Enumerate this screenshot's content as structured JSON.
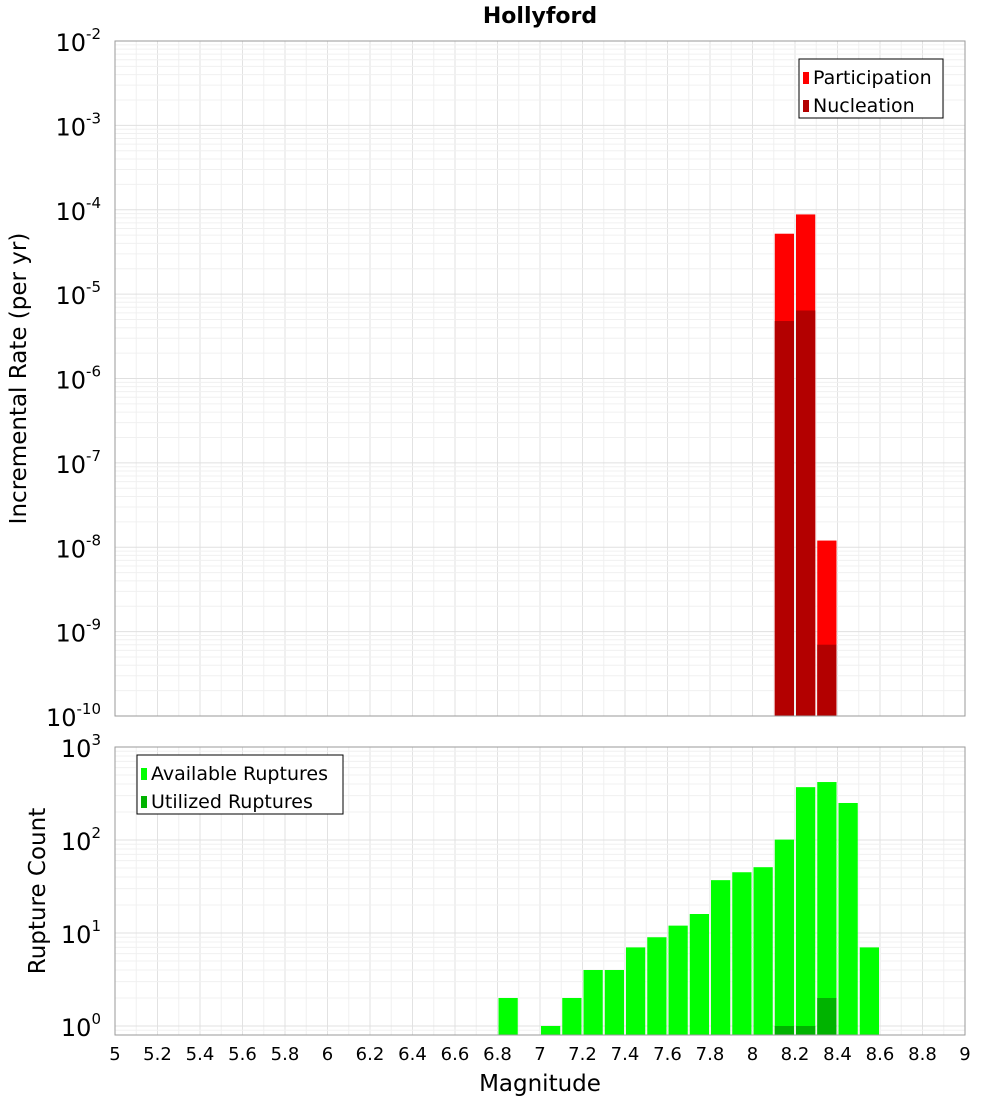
{
  "chart_data": [
    {
      "type": "bar",
      "title": "Hollyford",
      "ylabel": "Incremental Rate (per yr)",
      "xlabel": "",
      "y_scale": "log",
      "ylim": [
        1e-10,
        0.01
      ],
      "xlim": [
        5,
        9
      ],
      "grid": true,
      "legend_position": "top-right",
      "bin_width": 0.1,
      "series": [
        {
          "name": "Participation",
          "color": "#ff0000",
          "x": [
            8.15,
            8.25,
            8.35
          ],
          "values": [
            5.2e-05,
            8.8e-05,
            1.2e-08
          ]
        },
        {
          "name": "Nucleation",
          "color": "#b30000",
          "x": [
            8.15,
            8.25,
            8.35
          ],
          "values": [
            4.8e-06,
            6.4e-06,
            7e-10
          ]
        }
      ]
    },
    {
      "type": "bar",
      "title": "",
      "ylabel": "Rupture Count",
      "xlabel": "Magnitude",
      "y_scale": "log",
      "ylim": [
        0.8,
        1000
      ],
      "xlim": [
        5,
        9
      ],
      "grid": true,
      "legend_position": "top-left",
      "bin_width": 0.1,
      "x_ticks": [
        "5",
        "5.2",
        "5.4",
        "5.6",
        "5.8",
        "6",
        "6.2",
        "6.4",
        "6.6",
        "6.8",
        "7",
        "7.2",
        "7.4",
        "7.6",
        "7.8",
        "8",
        "8.2",
        "8.4",
        "8.6",
        "8.8",
        "9"
      ],
      "series": [
        {
          "name": "Available Ruptures",
          "color": "#00ff00",
          "x": [
            6.85,
            7.05,
            7.15,
            7.25,
            7.35,
            7.45,
            7.55,
            7.65,
            7.75,
            7.85,
            7.95,
            8.05,
            8.15,
            8.25,
            8.35,
            8.45,
            8.55
          ],
          "values": [
            2,
            1,
            2,
            4,
            4,
            7,
            9,
            12,
            16,
            37,
            45,
            51,
            101,
            370,
            420,
            250,
            7
          ]
        },
        {
          "name": "Utilized Ruptures",
          "color": "#00b300",
          "x": [
            8.15,
            8.25,
            8.35
          ],
          "values": [
            1,
            1,
            2
          ]
        }
      ]
    }
  ]
}
